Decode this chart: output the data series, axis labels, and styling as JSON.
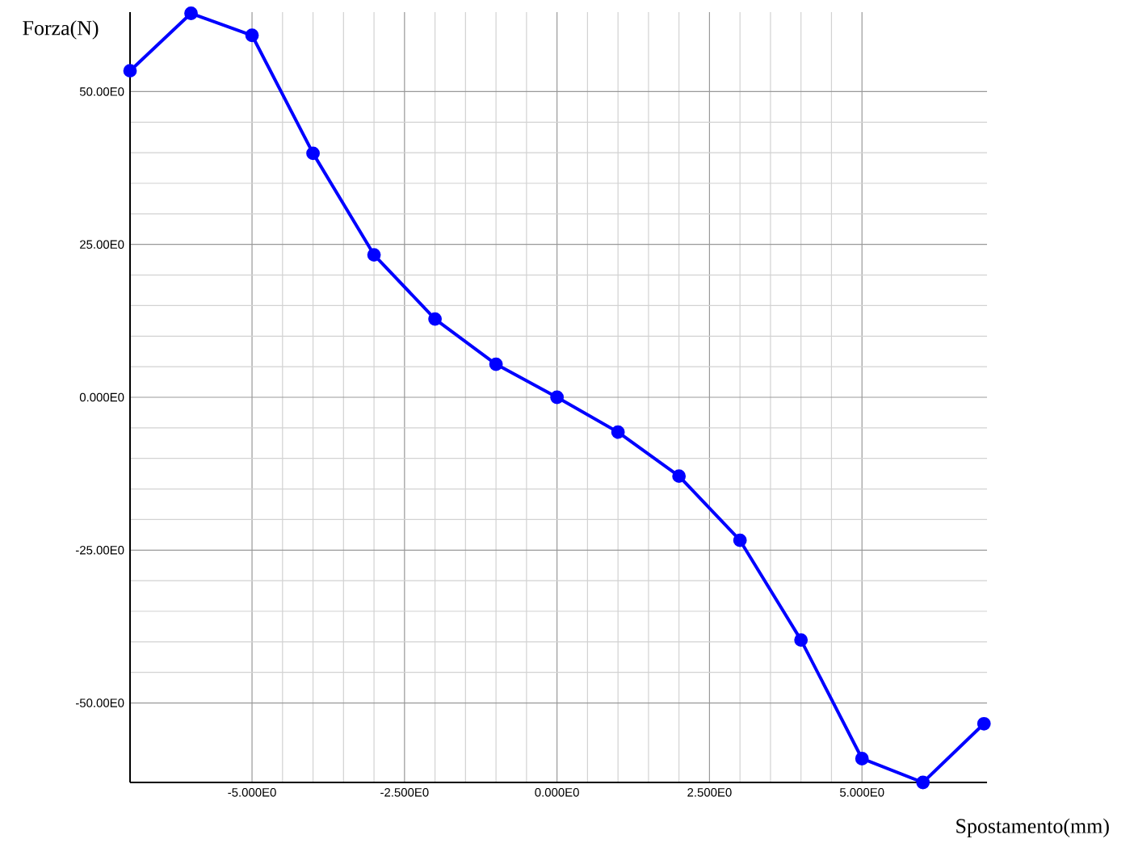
{
  "chart_data": {
    "type": "line",
    "xlabel": "Spostamento(mm)",
    "ylabel": "Forza(N)",
    "x": [
      -7,
      -6,
      -5,
      -4,
      -3,
      -2,
      -1,
      0,
      1,
      2,
      3,
      4,
      5,
      6,
      7
    ],
    "series": [
      {
        "color": "#0000ff",
        "values": [
          53.4,
          62.8,
          59.2,
          39.9,
          23.3,
          12.8,
          5.4,
          0,
          -5.7,
          -12.9,
          -23.4,
          -39.7,
          -59.1,
          -63.0,
          -53.4
        ]
      }
    ],
    "xlim": [
      -7,
      7.05
    ],
    "ylim": [
      -63,
      63
    ],
    "xticks": [
      {
        "value": -5,
        "label": "-5.000E0"
      },
      {
        "value": -2.5,
        "label": "-2.500E0"
      },
      {
        "value": 0,
        "label": "0.000E0"
      },
      {
        "value": 2.5,
        "label": "2.500E0"
      },
      {
        "value": 5,
        "label": "5.000E0"
      }
    ],
    "yticks": [
      {
        "value": -50,
        "label": "-50.00E0"
      },
      {
        "value": -25,
        "label": "-25.00E0"
      },
      {
        "value": 0,
        "label": "0.000E0"
      },
      {
        "value": 25,
        "label": "25.00E0"
      },
      {
        "value": 50,
        "label": "50.00E0"
      }
    ],
    "grid": true,
    "marker": "circle",
    "line_style": "solid"
  }
}
